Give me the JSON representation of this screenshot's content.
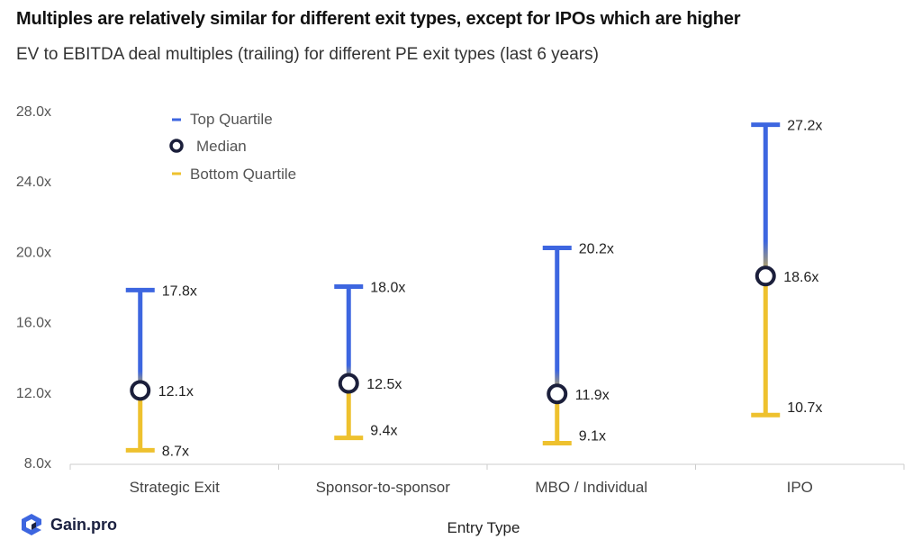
{
  "title": "Multiples are relatively similar for different exit types, except for IPOs which are higher",
  "subtitle": "EV to EBITDA deal multiples (trailing) for different PE exit types (last 6 years)",
  "brand": "Gain.pro",
  "colors": {
    "top": "#3d66e0",
    "bottom": "#eec12e",
    "median_stroke": "#1b1f3b",
    "axis": "#cccccc",
    "text": "#333333"
  },
  "chart_data": {
    "type": "range",
    "xlabel": "Entry Type",
    "ylabel": "",
    "ylim": [
      8,
      28
    ],
    "yticks": [
      "8.0x",
      "12.0x",
      "16.0x",
      "20.0x",
      "24.0x",
      "28.0x"
    ],
    "ytick_values": [
      8,
      12,
      16,
      20,
      24,
      28
    ],
    "legend": [
      "Top Quartile",
      "Median",
      "Bottom Quartile"
    ],
    "legend_position": "top-left",
    "categories": [
      "Strategic Exit",
      "Sponsor-to-sponsor",
      "MBO / Individual",
      "IPO"
    ],
    "top": [
      17.8,
      18.0,
      20.2,
      27.2
    ],
    "median": [
      12.1,
      12.5,
      11.9,
      18.6
    ],
    "bottom": [
      8.7,
      9.4,
      9.1,
      10.7
    ],
    "top_labels": [
      "17.8x",
      "18.0x",
      "20.2x",
      "27.2x"
    ],
    "median_labels": [
      "12.1x",
      "12.5x",
      "11.9x",
      "18.6x"
    ],
    "bottom_labels": [
      "8.7x",
      "9.4x",
      "9.1x",
      "10.7x"
    ]
  }
}
